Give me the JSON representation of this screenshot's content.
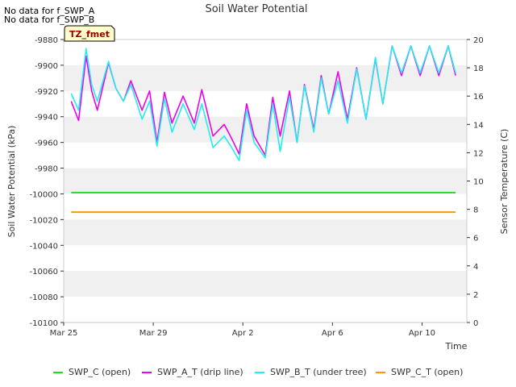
{
  "no_data_messages": [
    "No data for f_SWP_A",
    "No data for f_SWP_B"
  ],
  "badge_label": "TZ_fmet",
  "colors": {
    "SWP_C": "#22dd22",
    "SWP_A_T": "#ee00ee",
    "SWP_B_T": "#22eeee",
    "SWP_C_T": "#ff9900",
    "band": "#f0f0f0",
    "badge_bg": "#ffffcc",
    "badge_text": "#990000"
  },
  "chart_data": {
    "type": "line",
    "title": "Soil Water Potential",
    "xlabel": "Time",
    "ylabel": "Soil Water Potential (kPa)",
    "y2label": "Sensor Temperature (C)",
    "xlim": [
      "2024-03-25",
      "2024-04-12"
    ],
    "ylim": [
      -10100,
      -9880
    ],
    "y2lim": [
      0,
      20
    ],
    "x_ticks": [
      "2024-03-25",
      "2024-03-29",
      "2024-04-02",
      "2024-04-06",
      "2024-04-10"
    ],
    "x_tick_labels": [
      "Mar 25",
      "Mar 29",
      "Apr 2",
      "Apr 6",
      "Apr 10"
    ],
    "y_ticks": [
      -9880,
      -9900,
      -9920,
      -9940,
      -9960,
      -9980,
      -10000,
      -10020,
      -10040,
      -10060,
      -10080,
      -10100
    ],
    "y2_ticks": [
      0,
      2,
      4,
      6,
      8,
      10,
      12,
      14,
      16,
      18,
      20
    ],
    "grid": "horizontal bands",
    "legend": "bottom",
    "series": [
      {
        "name": "SWP_C (open)",
        "axis": "left",
        "x": [
          "2024-03-25T08:00",
          "2024-04-11T12:00"
        ],
        "y": [
          -9999,
          -9999
        ]
      },
      {
        "name": "SWP_A_T (drip line)",
        "axis": "left",
        "x": [
          "2024-03-25T08:00",
          "2024-03-25T16:00",
          "2024-03-26T00:00",
          "2024-03-26T06:00",
          "2024-03-26T12:00",
          "2024-03-27T00:00",
          "2024-03-27T08:00",
          "2024-03-27T16:00",
          "2024-03-28T00:00",
          "2024-03-28T12:00",
          "2024-03-28T20:00",
          "2024-03-29T04:00",
          "2024-03-29T12:00",
          "2024-03-29T20:00",
          "2024-03-30T08:00",
          "2024-03-30T20:00",
          "2024-03-31T04:00",
          "2024-03-31T16:00",
          "2024-04-01T04:00",
          "2024-04-01T12:00",
          "2024-04-01T20:00",
          "2024-04-02T04:00",
          "2024-04-02T12:00",
          "2024-04-03T00:00",
          "2024-04-03T08:00",
          "2024-04-03T16:00",
          "2024-04-04T02:00",
          "2024-04-04T10:00",
          "2024-04-04T18:00",
          "2024-04-05T04:00",
          "2024-04-05T12:00",
          "2024-04-05T20:00",
          "2024-04-06T06:00",
          "2024-04-06T16:00",
          "2024-04-07T02:00",
          "2024-04-07T12:00",
          "2024-04-07T22:00",
          "2024-04-08T06:00",
          "2024-04-08T16:00",
          "2024-04-09T02:00",
          "2024-04-09T12:00",
          "2024-04-09T22:00",
          "2024-04-10T08:00",
          "2024-04-10T18:00",
          "2024-04-11T04:00",
          "2024-04-11T12:00"
        ],
        "y": [
          -9928,
          -9943,
          -9893,
          -9920,
          -9935,
          -9898,
          -9918,
          -9928,
          -9912,
          -9935,
          -9920,
          -9960,
          -9921,
          -9945,
          -9924,
          -9945,
          -9919,
          -9955,
          -9946,
          -9957,
          -9969,
          -9930,
          -9955,
          -9970,
          -9925,
          -9955,
          -9920,
          -9960,
          -9915,
          -9950,
          -9908,
          -9938,
          -9905,
          -9942,
          -9902,
          -9942,
          -9895,
          -9930,
          -9885,
          -9908,
          -9885,
          -9908,
          -9885,
          -9908,
          -9885,
          -9908
        ]
      },
      {
        "name": "SWP_B_T (under tree)",
        "axis": "left",
        "x": [
          "2024-03-25T08:00",
          "2024-03-25T16:00",
          "2024-03-26T00:00",
          "2024-03-26T06:00",
          "2024-03-26T12:00",
          "2024-03-27T00:00",
          "2024-03-27T08:00",
          "2024-03-27T16:00",
          "2024-03-28T00:00",
          "2024-03-28T12:00",
          "2024-03-28T20:00",
          "2024-03-29T04:00",
          "2024-03-29T12:00",
          "2024-03-29T20:00",
          "2024-03-30T08:00",
          "2024-03-30T20:00",
          "2024-03-31T04:00",
          "2024-03-31T16:00",
          "2024-04-01T04:00",
          "2024-04-01T12:00",
          "2024-04-01T20:00",
          "2024-04-02T04:00",
          "2024-04-02T12:00",
          "2024-04-03T00:00",
          "2024-04-03T08:00",
          "2024-04-03T16:00",
          "2024-04-04T02:00",
          "2024-04-04T10:00",
          "2024-04-04T18:00",
          "2024-04-05T04:00",
          "2024-04-05T12:00",
          "2024-04-05T20:00",
          "2024-04-06T06:00",
          "2024-04-06T16:00",
          "2024-04-07T02:00",
          "2024-04-07T12:00",
          "2024-04-07T22:00",
          "2024-04-08T06:00",
          "2024-04-08T16:00",
          "2024-04-09T02:00",
          "2024-04-09T12:00",
          "2024-04-09T22:00",
          "2024-04-10T08:00",
          "2024-04-10T18:00",
          "2024-04-11T04:00",
          "2024-04-11T12:00"
        ],
        "y": [
          -9922,
          -9935,
          -9887,
          -9915,
          -9928,
          -9897,
          -9918,
          -9928,
          -9915,
          -9942,
          -9928,
          -9963,
          -9926,
          -9952,
          -9930,
          -9950,
          -9930,
          -9964,
          -9955,
          -9964,
          -9974,
          -9935,
          -9960,
          -9972,
          -9930,
          -9967,
          -9925,
          -9960,
          -9916,
          -9952,
          -9910,
          -9938,
          -9912,
          -9945,
          -9903,
          -9942,
          -9894,
          -9930,
          -9885,
          -9906,
          -9885,
          -9906,
          -9885,
          -9906,
          -9885,
          -9906
        ]
      },
      {
        "name": "SWP_C_T (open)",
        "axis": "right",
        "x": [
          "2024-03-25T08:00",
          "2024-04-11T12:00"
        ],
        "y": [
          7.8,
          7.8
        ]
      }
    ]
  }
}
